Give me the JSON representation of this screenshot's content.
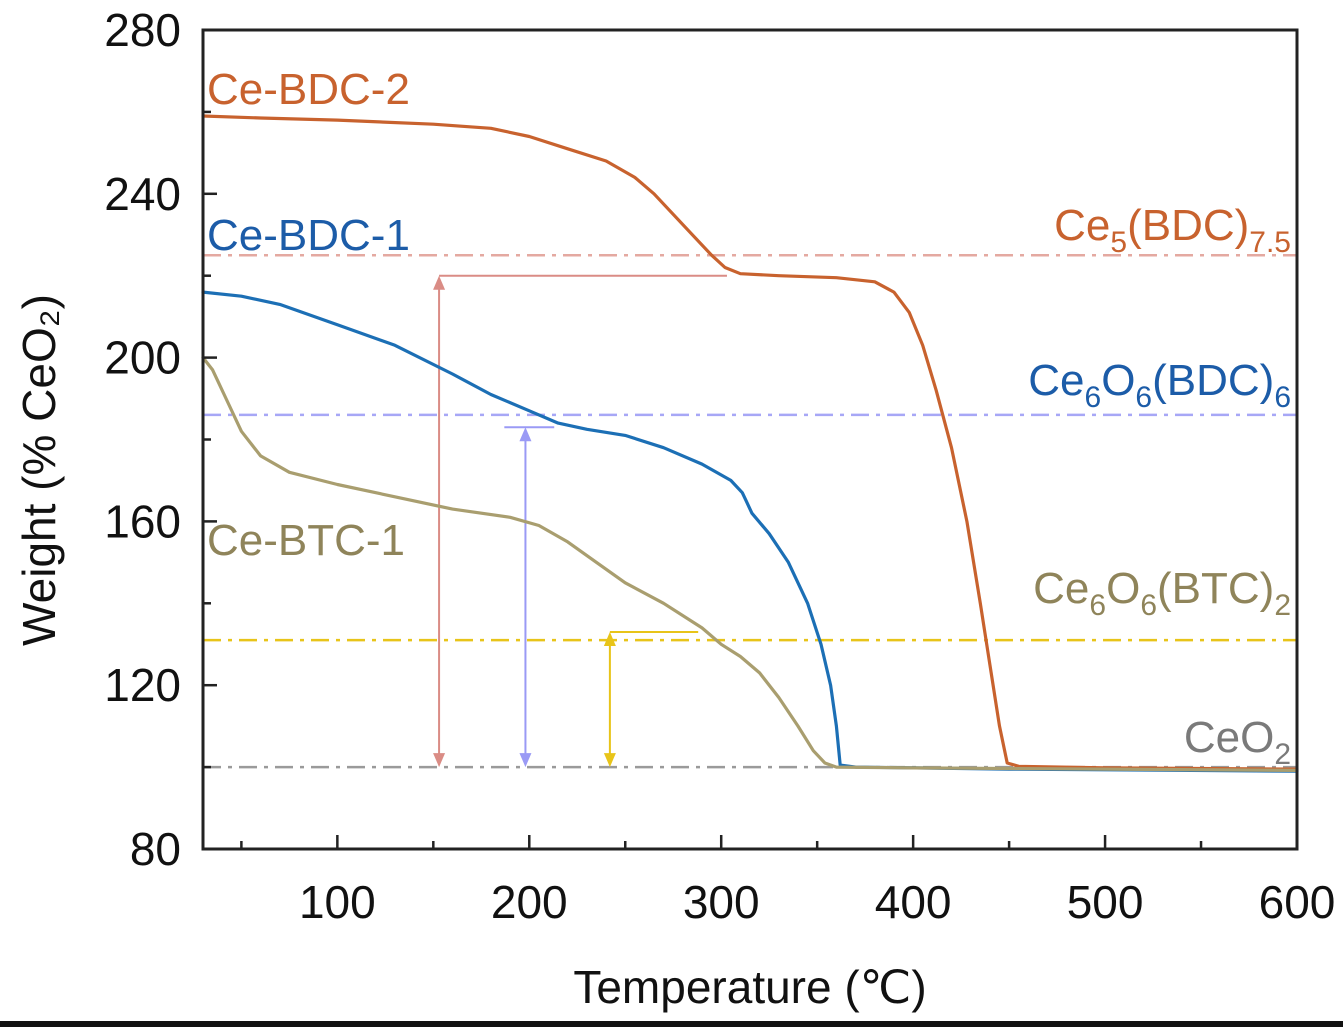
{
  "chart_data": {
    "type": "line",
    "xlabel": "Temperature (℃)",
    "ylabel": "Weight (% CeO₂)",
    "xlim": [
      30,
      600
    ],
    "ylim": [
      80,
      280
    ],
    "x_ticks": [
      100,
      200,
      300,
      400,
      500,
      600
    ],
    "y_ticks": [
      80,
      120,
      160,
      200,
      240,
      280
    ],
    "grid": false,
    "series": [
      {
        "name": "Ce-BDC-2",
        "color": "#C8622E",
        "points": [
          [
            30,
            259
          ],
          [
            60,
            258.5
          ],
          [
            100,
            258
          ],
          [
            150,
            257
          ],
          [
            180,
            256
          ],
          [
            200,
            254
          ],
          [
            220,
            251
          ],
          [
            240,
            248
          ],
          [
            255,
            244
          ],
          [
            265,
            240
          ],
          [
            275,
            235
          ],
          [
            285,
            230
          ],
          [
            295,
            225
          ],
          [
            302,
            222
          ],
          [
            310,
            220.5
          ],
          [
            330,
            220
          ],
          [
            360,
            219.5
          ],
          [
            380,
            218.5
          ],
          [
            390,
            216
          ],
          [
            398,
            211
          ],
          [
            405,
            203
          ],
          [
            412,
            192
          ],
          [
            420,
            178
          ],
          [
            428,
            160
          ],
          [
            435,
            140
          ],
          [
            440,
            125
          ],
          [
            445,
            110
          ],
          [
            449,
            101
          ],
          [
            455,
            100.2
          ],
          [
            500,
            99.8
          ],
          [
            600,
            99.5
          ]
        ]
      },
      {
        "name": "Ce-BDC-1",
        "color": "#1C6FB5",
        "points": [
          [
            30,
            216
          ],
          [
            50,
            215
          ],
          [
            70,
            213
          ],
          [
            100,
            208
          ],
          [
            130,
            203
          ],
          [
            160,
            196
          ],
          [
            180,
            191
          ],
          [
            200,
            187
          ],
          [
            215,
            184
          ],
          [
            230,
            182.5
          ],
          [
            250,
            181
          ],
          [
            270,
            178
          ],
          [
            290,
            174
          ],
          [
            305,
            170
          ],
          [
            311,
            167
          ],
          [
            313,
            165
          ],
          [
            316,
            162
          ],
          [
            325,
            157
          ],
          [
            335,
            150
          ],
          [
            345,
            140
          ],
          [
            352,
            130
          ],
          [
            357,
            120
          ],
          [
            360,
            110
          ],
          [
            362,
            100.5
          ],
          [
            370,
            100
          ],
          [
            450,
            99.5
          ],
          [
            600,
            99
          ]
        ]
      },
      {
        "name": "Ce-BTC-1",
        "color": "#A99E6F",
        "points": [
          [
            30,
            200
          ],
          [
            35,
            197
          ],
          [
            42,
            190
          ],
          [
            50,
            182
          ],
          [
            60,
            176
          ],
          [
            75,
            172
          ],
          [
            100,
            169
          ],
          [
            130,
            166
          ],
          [
            160,
            163
          ],
          [
            190,
            161
          ],
          [
            205,
            159
          ],
          [
            220,
            155
          ],
          [
            235,
            150
          ],
          [
            250,
            145
          ],
          [
            270,
            140
          ],
          [
            290,
            134
          ],
          [
            300,
            130
          ],
          [
            310,
            127
          ],
          [
            320,
            123
          ],
          [
            330,
            117
          ],
          [
            340,
            110
          ],
          [
            348,
            104
          ],
          [
            354,
            101
          ],
          [
            360,
            100
          ],
          [
            400,
            99.8
          ],
          [
            600,
            99.2
          ]
        ]
      }
    ],
    "reference_lines": [
      {
        "label": "Ce5(BDC)7.5",
        "y": 225,
        "color": "#E4A9A1"
      },
      {
        "label": "Ce6O6(BDC)6",
        "y": 186,
        "color": "#A7A7F6"
      },
      {
        "label": "Ce6O6(BTC)2",
        "y": 131,
        "color": "#E8C419"
      },
      {
        "label": "CeO2",
        "y": 100,
        "color": "#9A9A9A"
      }
    ],
    "arrows": [
      {
        "x": 153,
        "y_from": 100,
        "y_to": 220,
        "color": "#DA8C85",
        "cap_x_to": 303
      },
      {
        "x": 198,
        "y_from": 100,
        "y_to": 183,
        "color": "#9A9AF5",
        "cap_x_from": 187,
        "cap_x_to": 213
      },
      {
        "x": 242,
        "y_from": 100,
        "y_to": 133,
        "color": "#E8C419",
        "cap_x_to": 288
      }
    ]
  },
  "labels": {
    "ce_bdc_2": "Ce-BDC-2",
    "ce_bdc_1": "Ce-BDC-1",
    "ce_btc_1": "Ce-BTC-1",
    "f1": {
      "a": "Ce",
      "b": "5",
      "c": "(BDC)",
      "d": "7.5",
      "color": "#C8622E"
    },
    "f2": {
      "a": "Ce",
      "b": "6",
      "c": "O",
      "d": "6",
      "e": "(BDC)",
      "f": "6",
      "color": "#1C5CA8"
    },
    "f3": {
      "a": "Ce",
      "b": "6",
      "c": "O",
      "d": "6",
      "e": "(BTC)",
      "f": "2",
      "color": "#8F845A"
    },
    "f4": {
      "a": "CeO",
      "b": "2",
      "color": "#7A7A7A"
    }
  }
}
